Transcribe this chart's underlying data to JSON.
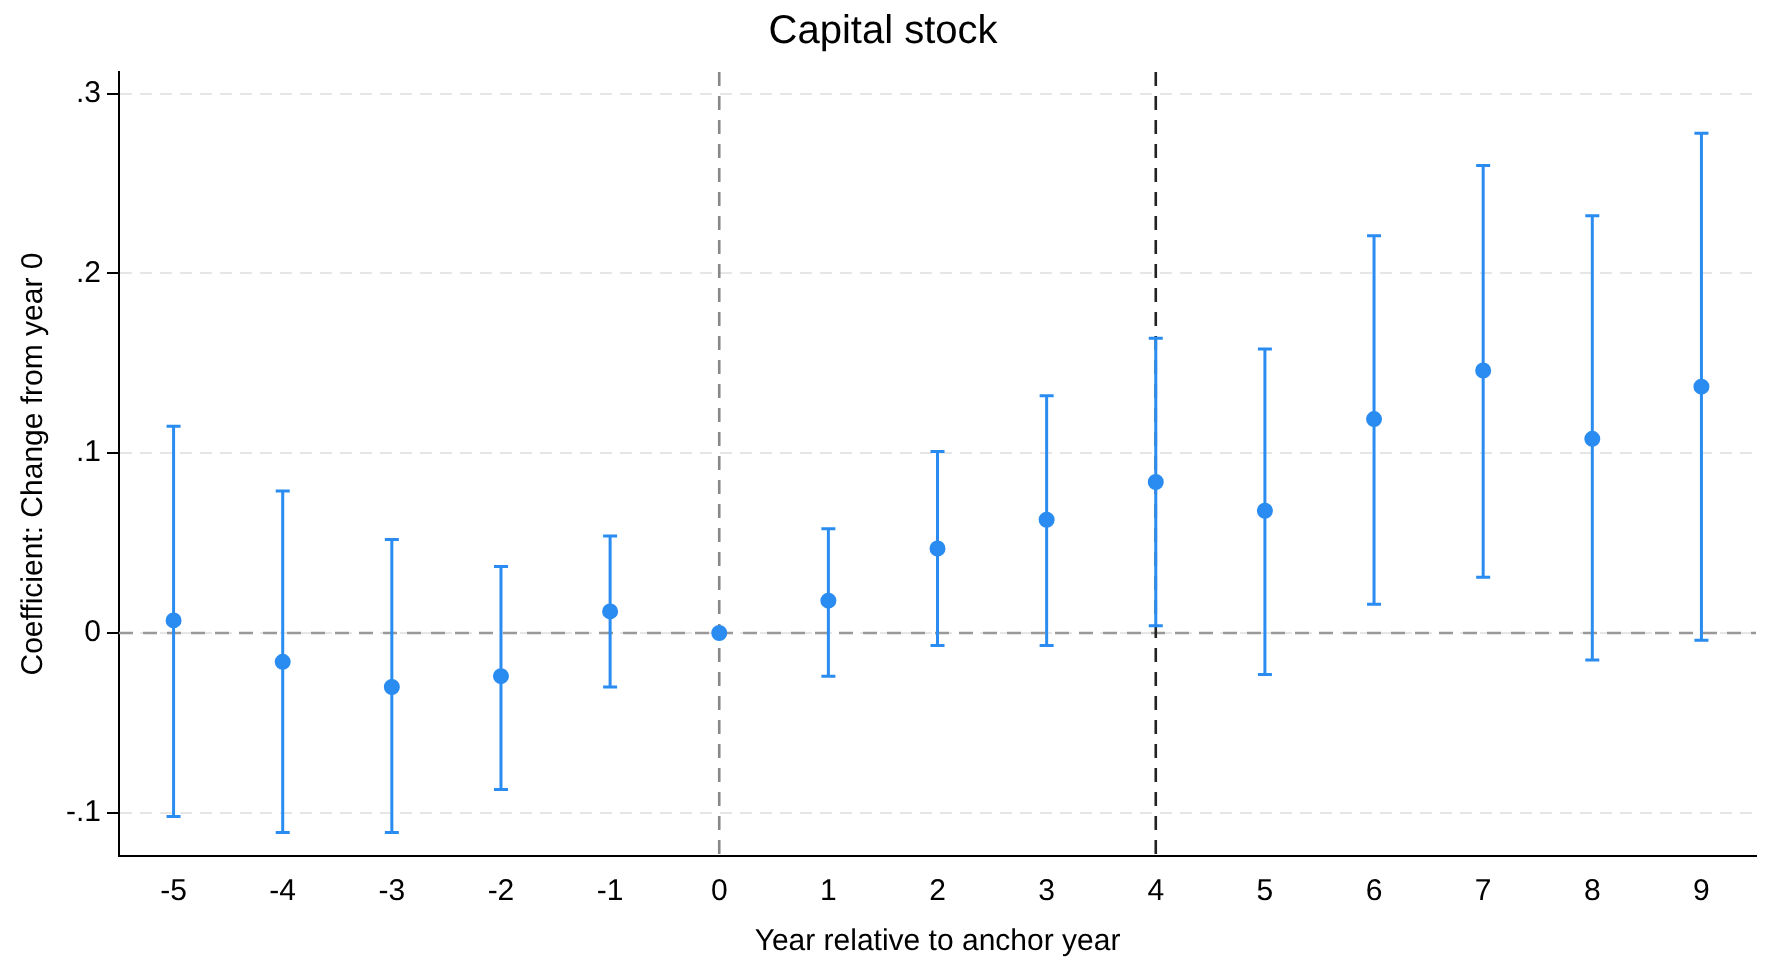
{
  "chart_data": {
    "type": "scatter",
    "title": "Capital stock",
    "xlabel": "Year relative to anchor year",
    "ylabel": "Coefficient: Change from year 0",
    "x": [
      -5,
      -4,
      -3,
      -2,
      -1,
      0,
      1,
      2,
      3,
      4,
      5,
      6,
      7,
      8,
      9
    ],
    "series": [
      {
        "color": "#2a8cf0",
        "values": [
          0.007,
          -0.016,
          -0.03,
          -0.024,
          0.012,
          0,
          0.018,
          0.047,
          0.063,
          0.084,
          0.068,
          0.119,
          0.146,
          0.108,
          0.137
        ],
        "errors": [
          [
            -0.102,
            0.115
          ],
          [
            -0.111,
            0.079
          ],
          [
            -0.111,
            0.052
          ],
          [
            -0.087,
            0.037
          ],
          [
            -0.03,
            0.054
          ],
          null,
          [
            -0.024,
            0.058
          ],
          [
            -0.007,
            0.101
          ],
          [
            -0.007,
            0.132
          ],
          [
            0.004,
            0.164
          ],
          [
            -0.023,
            0.158
          ],
          [
            0.016,
            0.221
          ],
          [
            0.031,
            0.26
          ],
          [
            -0.015,
            0.232
          ],
          [
            -0.004,
            0.278
          ]
        ]
      }
    ],
    "xlim": [
      -5.5,
      9.5
    ],
    "xticks": [
      -5,
      -4,
      -3,
      -2,
      -1,
      0,
      1,
      2,
      3,
      4,
      5,
      6,
      7,
      8,
      9
    ],
    "ylim": [
      -0.124,
      0.312
    ],
    "yticks": [
      {
        "value": -0.1,
        "label": "-.1"
      },
      0,
      {
        "value": 0.1,
        "label": ".1"
      },
      {
        "value": 0.2,
        "label": ".2"
      },
      {
        "value": 0.3,
        "label": ".3"
      }
    ],
    "ref_lines": [
      {
        "axis": "y",
        "value": 0,
        "color": "#999999",
        "line_style": "dashed"
      },
      {
        "axis": "x",
        "value": 0,
        "color": "#888888",
        "line_style": "dashed"
      },
      {
        "axis": "x",
        "value": 4,
        "color": "#222222",
        "line_style": "dashed"
      }
    ],
    "grid": "y",
    "marker": "circle",
    "legend": false
  }
}
